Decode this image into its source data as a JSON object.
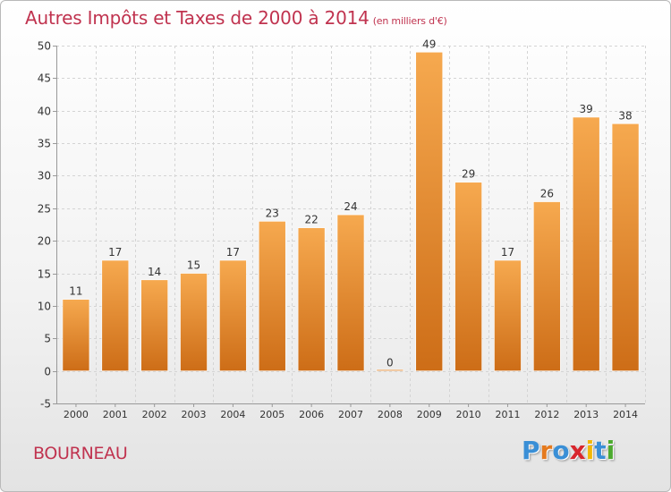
{
  "header": {
    "title": "Autres Impôts et Taxes de 2000 à 2014",
    "unit_note": "(en milliers d'€)"
  },
  "footer": {
    "commune": "BOURNEAU",
    "brand": [
      "P",
      "r",
      "o",
      "x",
      "i",
      "t",
      "i"
    ],
    "brand_colors": [
      "#3a8fd6",
      "#e57a1e",
      "#3a8fd6",
      "#d8262d",
      "#f2b705",
      "#3a8fd6",
      "#4caa2f"
    ]
  },
  "colors": {
    "title": "#c0334f",
    "bar_light": "#f6a94f",
    "bar_dark": "#cd6d17",
    "grid": "#d4d4d4",
    "axis_text": "#333333"
  },
  "chart_data": {
    "type": "bar",
    "categories": [
      "2000",
      "2001",
      "2002",
      "2003",
      "2004",
      "2005",
      "2006",
      "2007",
      "2008",
      "2009",
      "2010",
      "2011",
      "2012",
      "2013",
      "2014"
    ],
    "values": [
      11,
      17,
      14,
      15,
      17,
      23,
      22,
      24,
      0,
      49,
      29,
      17,
      26,
      39,
      38
    ],
    "ylim": [
      -5,
      50
    ],
    "yticks": [
      -5,
      0,
      5,
      10,
      15,
      20,
      25,
      30,
      35,
      40,
      45,
      50
    ],
    "grid": true,
    "data_labels": true
  }
}
